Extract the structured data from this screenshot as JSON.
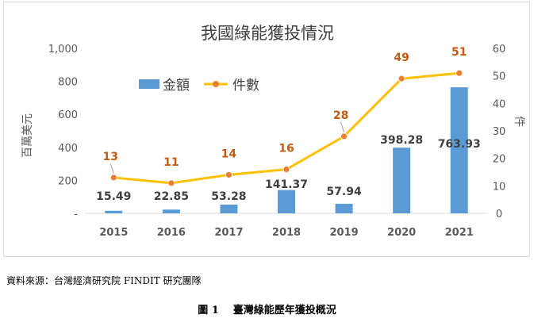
{
  "chart_data": {
    "type": "bar+line",
    "title": "我國綠能獲投情況",
    "categories": [
      "2015",
      "2016",
      "2017",
      "2018",
      "2019",
      "2020",
      "2021"
    ],
    "series": [
      {
        "name": "金額",
        "type": "bar",
        "axis": "left",
        "color": "#5b9bd5",
        "values": [
          15.49,
          22.85,
          53.28,
          141.37,
          57.94,
          398.28,
          763.93
        ],
        "labels": [
          "15.49",
          "22.85",
          "53.28",
          "141.37",
          "57.94",
          "398.28",
          "763.93"
        ]
      },
      {
        "name": "件數",
        "type": "line",
        "axis": "right",
        "color": "#ffc000",
        "label_color": "#c55a11",
        "values": [
          13,
          11,
          14,
          16,
          28,
          49,
          51
        ],
        "labels": [
          "13",
          "11",
          "14",
          "16",
          "28",
          "49",
          "51"
        ]
      }
    ],
    "y_left": {
      "label": "百萬美元",
      "min": 0,
      "max": 1000,
      "ticks": [
        "-",
        "200",
        "400",
        "600",
        "800",
        "1,000"
      ],
      "tick_values": [
        0,
        200,
        400,
        600,
        800,
        1000
      ]
    },
    "y_right": {
      "label": "件",
      "min": 0,
      "max": 60,
      "ticks": [
        "0",
        "10",
        "20",
        "30",
        "40",
        "50",
        "60"
      ],
      "tick_values": [
        0,
        10,
        20,
        30,
        40,
        50,
        60
      ]
    },
    "grid": false,
    "legend_position": "top-left"
  },
  "source_text": "資料來源：台灣經濟研究院 FINDIT 研究團隊",
  "figure_caption": {
    "number": "圖 1",
    "text": "臺灣綠能歷年獲投概況"
  }
}
